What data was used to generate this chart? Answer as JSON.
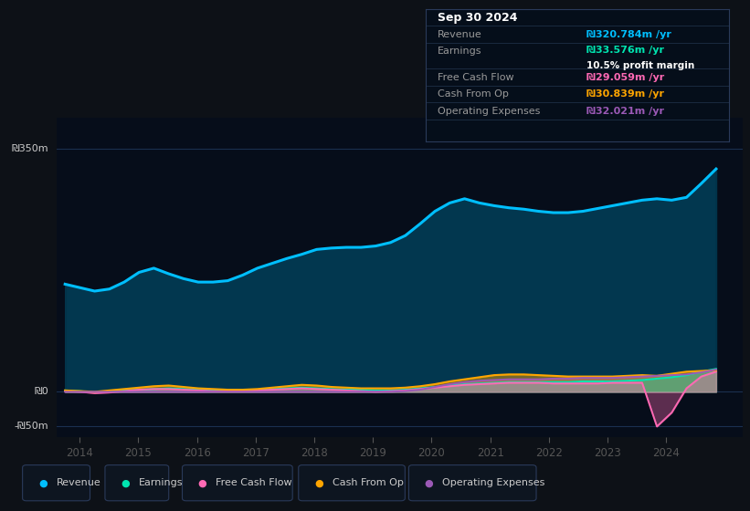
{
  "bg_color": "#0d1117",
  "plot_bg_color": "#0a1628",
  "chart_bg_dark": "#060d1a",
  "grid_color": "#1a3050",
  "y_label_350": "₪350m",
  "y_label_0": "₪0",
  "y_label_neg50": "-₪50m",
  "ylim": [
    -65,
    395
  ],
  "xlim_start": 2013.6,
  "xlim_end": 2025.3,
  "ytick_vals": [
    -50,
    0,
    350
  ],
  "xtick_years": [
    2014,
    2015,
    2016,
    2017,
    2018,
    2019,
    2020,
    2021,
    2022,
    2023,
    2024
  ],
  "tooltip": {
    "date": "Sep 30 2024",
    "revenue_label": "Revenue",
    "revenue_value": "₪320.784m /yr",
    "revenue_color": "#00bfff",
    "earnings_label": "Earnings",
    "earnings_value": "₪33.576m /yr",
    "earnings_color": "#00e5b0",
    "margin_text": "10.5% profit margin",
    "margin_color": "#ffffff",
    "fcf_label": "Free Cash Flow",
    "fcf_value": "₪29.059m /yr",
    "fcf_color": "#ff69b4",
    "cashop_label": "Cash From Op",
    "cashop_value": "₪30.839m /yr",
    "cashop_color": "#ffa500",
    "opex_label": "Operating Expenses",
    "opex_value": "₪32.021m /yr",
    "opex_color": "#9b59b6",
    "bg": "#050e1a",
    "border": "#2a3a5a",
    "text_color": "#999999",
    "title_color": "#ffffff",
    "value_suffix_color": "#aaaaaa"
  },
  "revenue_color": "#00bfff",
  "earnings_color": "#00e5b0",
  "fcf_color": "#ff69b4",
  "cashop_color": "#ffa500",
  "opex_color": "#9b59b6",
  "legend_items": [
    {
      "label": "Revenue",
      "color": "#00bfff"
    },
    {
      "label": "Earnings",
      "color": "#00e5b0"
    },
    {
      "label": "Free Cash Flow",
      "color": "#ff69b4"
    },
    {
      "label": "Cash From Op",
      "color": "#ffa500"
    },
    {
      "label": "Operating Expenses",
      "color": "#9b59b6"
    }
  ],
  "n_points": 45,
  "x_start": 2013.75,
  "x_end": 2024.85,
  "revenue": [
    155,
    150,
    145,
    148,
    158,
    172,
    178,
    170,
    163,
    158,
    158,
    160,
    168,
    178,
    185,
    192,
    198,
    205,
    207,
    208,
    208,
    210,
    215,
    225,
    242,
    260,
    272,
    278,
    272,
    268,
    265,
    263,
    260,
    258,
    258,
    260,
    264,
    268,
    272,
    276,
    278,
    276,
    280,
    300,
    321
  ],
  "earnings": [
    2,
    1,
    -1,
    0,
    2,
    3,
    4,
    5,
    4,
    3,
    2,
    2,
    2,
    3,
    4,
    5,
    6,
    5,
    4,
    3,
    3,
    2,
    2,
    3,
    5,
    7,
    9,
    11,
    12,
    13,
    14,
    14,
    14,
    14,
    14,
    15,
    15,
    15,
    16,
    17,
    19,
    21,
    24,
    29,
    33
  ],
  "free_cash_flow": [
    1,
    0,
    -2,
    -1,
    1,
    3,
    4,
    4,
    3,
    2,
    1,
    1,
    1,
    2,
    3,
    4,
    5,
    4,
    3,
    2,
    1,
    0,
    1,
    2,
    4,
    6,
    8,
    10,
    11,
    12,
    13,
    13,
    13,
    12,
    12,
    12,
    12,
    13,
    13,
    13,
    -50,
    -30,
    5,
    22,
    29
  ],
  "cash_from_op": [
    2,
    1,
    0,
    2,
    4,
    6,
    8,
    9,
    7,
    5,
    4,
    3,
    3,
    4,
    6,
    8,
    10,
    9,
    7,
    6,
    5,
    5,
    5,
    6,
    8,
    11,
    15,
    18,
    21,
    24,
    25,
    25,
    24,
    23,
    22,
    22,
    22,
    22,
    23,
    24,
    23,
    26,
    29,
    30,
    31
  ],
  "op_expenses": [
    0,
    0,
    0,
    0,
    0,
    0,
    0,
    0,
    0,
    0,
    0,
    0,
    0,
    0,
    0,
    0,
    0,
    0,
    0,
    0,
    0,
    0,
    0,
    1,
    3,
    7,
    11,
    14,
    16,
    17,
    18,
    18,
    18,
    19,
    19,
    20,
    20,
    20,
    21,
    22,
    23,
    24,
    25,
    28,
    32
  ]
}
